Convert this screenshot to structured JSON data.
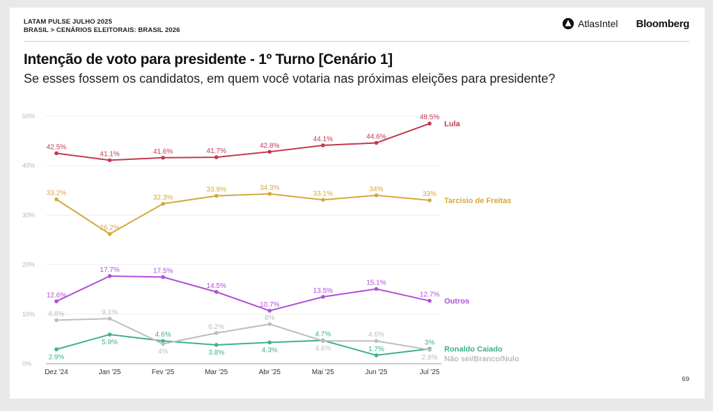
{
  "header": {
    "kicker_line1": "LATAM PULSE JULHO 2025",
    "kicker_line2": "BRASIL > CENÁRIOS ELEITORAIS: BRASIL 2026",
    "brand_atlas": "AtlasIntel",
    "brand_bloomberg": "Bloomberg"
  },
  "page_number": "69",
  "chart_data": {
    "type": "line",
    "title": "Intenção de voto para presidente - 1º Turno [Cenário 1]",
    "subtitle": "Se esses fossem os candidatos, em quem você votaria nas próximas eleições para presidente?",
    "categories": [
      "Dez '24",
      "Jan '25",
      "Fev '25",
      "Mar '25",
      "Abr '25",
      "Mai '25",
      "Jun '25",
      "Jul '25"
    ],
    "ylim": [
      0,
      50
    ],
    "yticks": [
      0,
      10,
      20,
      30,
      40,
      50
    ],
    "ytick_labels": [
      "0%",
      "10%",
      "20%",
      "30%",
      "40%",
      "50%"
    ],
    "grid": true,
    "legend": "right, at line ends",
    "series": [
      {
        "name": "Lula",
        "color": "#c0394e",
        "values": [
          42.5,
          41.1,
          41.6,
          41.7,
          42.8,
          44.1,
          44.6,
          48.5
        ],
        "labels": [
          "42.5%",
          "41.1%",
          "41.6%",
          "41.7%",
          "42.8%",
          "44.1%",
          "44.6%",
          "48.5%"
        ],
        "label_pos": [
          "above",
          "above",
          "above",
          "above",
          "above",
          "above",
          "above",
          "above"
        ]
      },
      {
        "name": "Tarcísio de Freitas",
        "color": "#d6a73a",
        "values": [
          33.2,
          26.2,
          32.3,
          33.9,
          34.3,
          33.1,
          34,
          33
        ],
        "labels": [
          "33.2%",
          "26.2%",
          "32.3%",
          "33.9%",
          "34.3%",
          "33.1%",
          "34%",
          "33%"
        ],
        "label_pos": [
          "above",
          "above",
          "above",
          "above",
          "above",
          "above",
          "above",
          "above"
        ]
      },
      {
        "name": "Outros",
        "color": "#b04fd6",
        "values": [
          12.6,
          17.7,
          17.5,
          14.5,
          10.7,
          13.5,
          15.1,
          12.7
        ],
        "labels": [
          "12.6%",
          "17.7%",
          "17.5%",
          "14.5%",
          "10.7%",
          "13.5%",
          "15.1%",
          "12.7%"
        ],
        "label_pos": [
          "above",
          "above",
          "above",
          "above",
          "above",
          "above",
          "above",
          "above"
        ]
      },
      {
        "name": "Ronaldo Caiado",
        "color": "#3fae92",
        "values": [
          2.9,
          5.9,
          4.6,
          3.8,
          4.3,
          4.7,
          1.7,
          3
        ],
        "labels": [
          "2.9%",
          "5.9%",
          "4.6%",
          "3.8%",
          "4.3%",
          "4.7%",
          "1.7%",
          "3%"
        ],
        "label_pos": [
          "below",
          "below",
          "above",
          "below",
          "below",
          "above",
          "above",
          "above"
        ]
      },
      {
        "name": "Não sei/Branco/Nulo",
        "color": "#bdbdbd",
        "values": [
          8.8,
          9.1,
          4,
          6.2,
          8,
          4.6,
          4.6,
          2.8
        ],
        "labels": [
          "8.8%",
          "9.1%",
          "4%",
          "6.2%",
          "8%",
          "4.6%",
          "4.6%",
          "2.8%"
        ],
        "label_pos": [
          "above",
          "above",
          "below",
          "above",
          "above",
          "below",
          "above",
          "below"
        ]
      }
    ]
  }
}
